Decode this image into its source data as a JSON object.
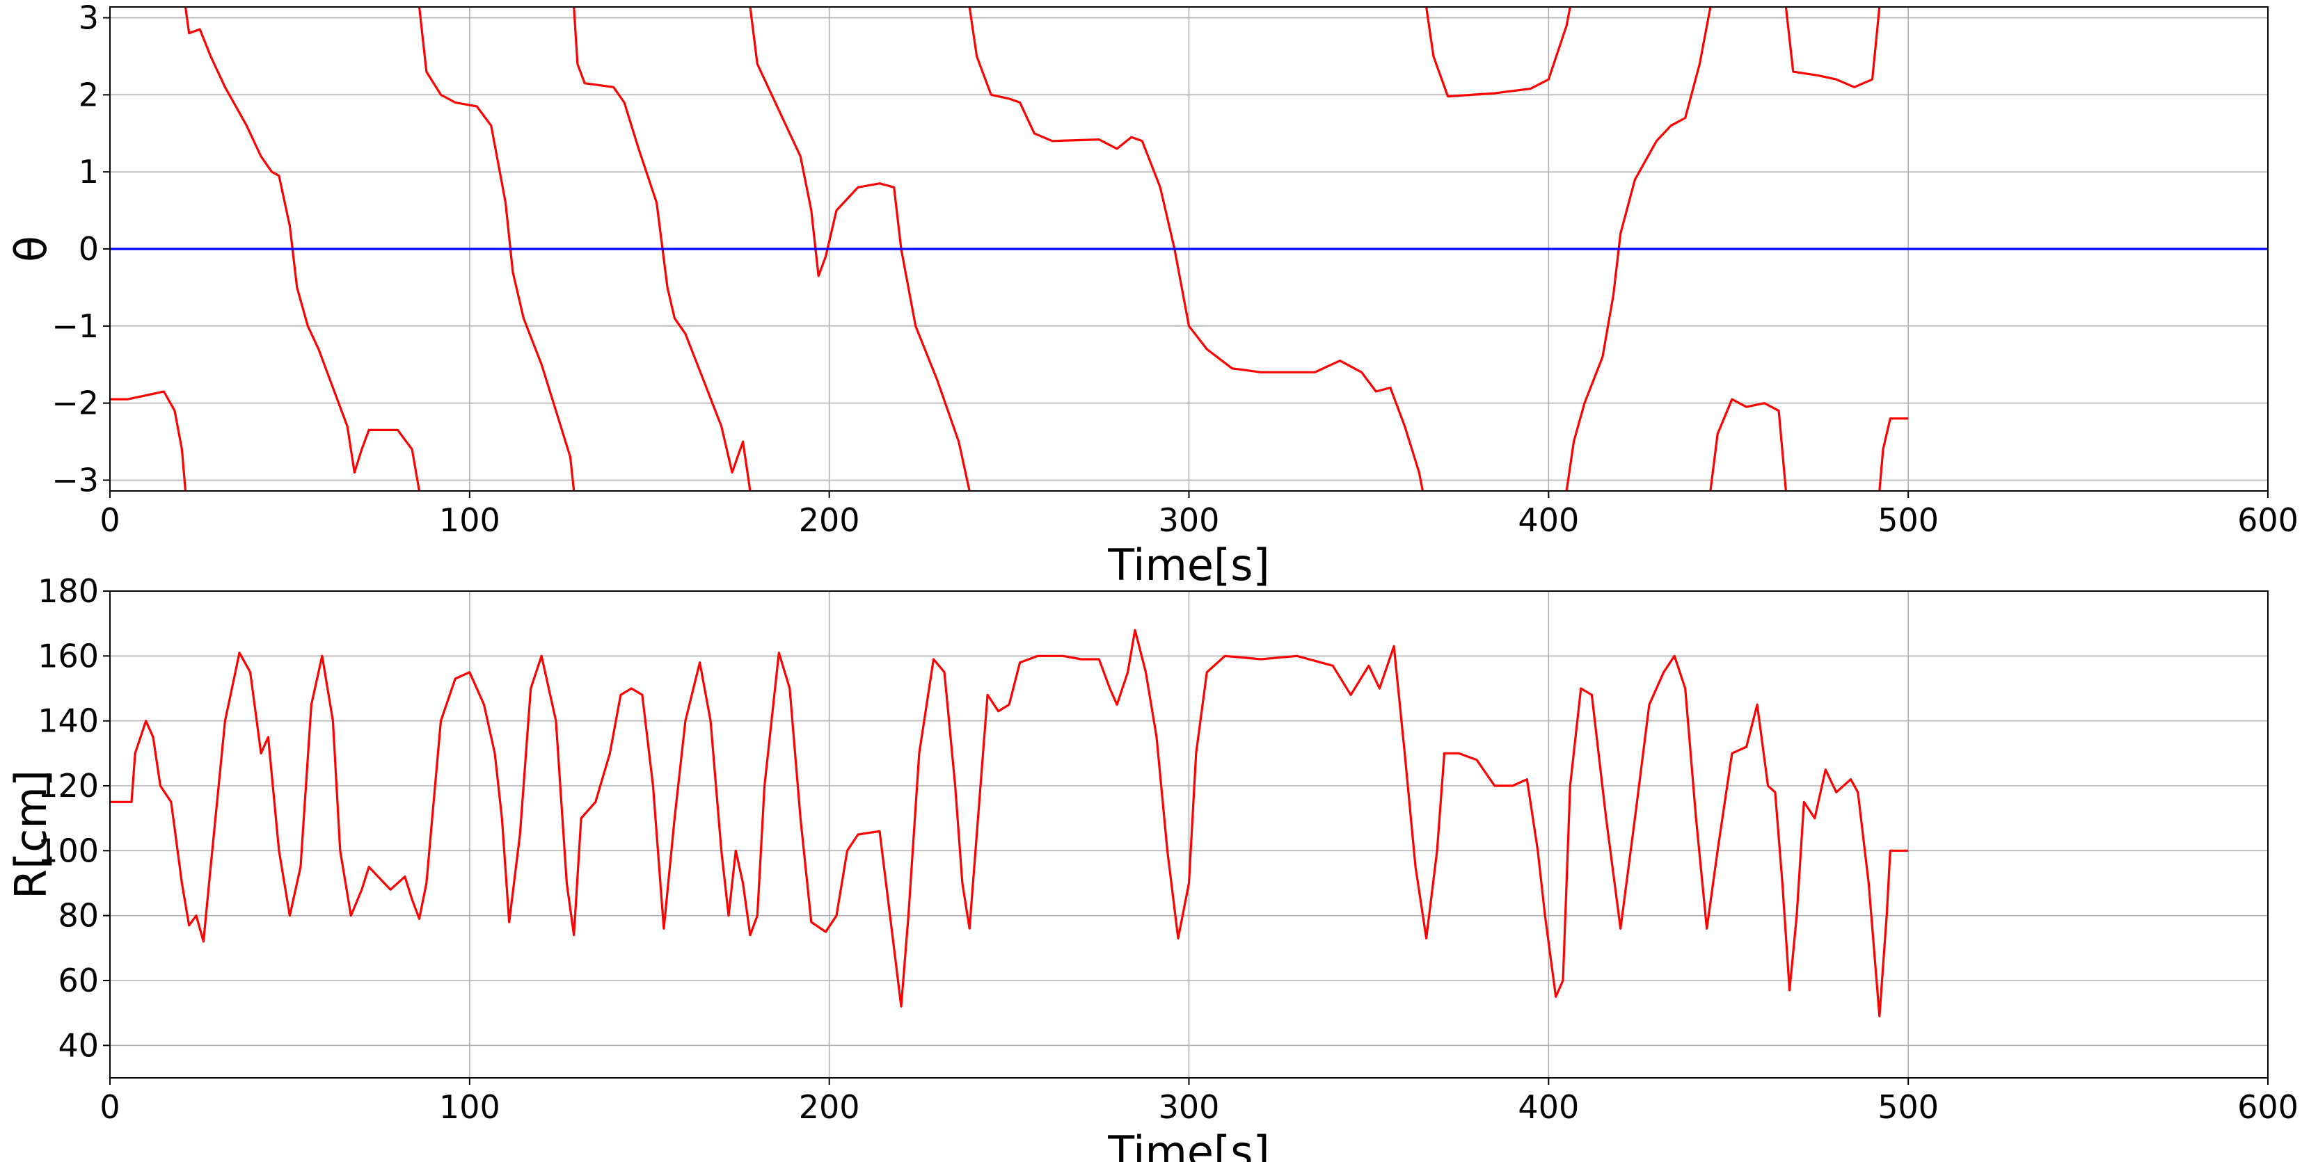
{
  "chart_data": [
    {
      "type": "line",
      "xlabel": "Time[s]",
      "ylabel": "θ",
      "xlim": [
        0,
        600
      ],
      "ylim": [
        -3.14,
        3.14
      ],
      "xticks": [
        0,
        100,
        200,
        300,
        400,
        500,
        600
      ],
      "yticks": [
        {
          "value": -3,
          "label": "−3"
        },
        {
          "value": -2,
          "label": "−2"
        },
        {
          "value": -1,
          "label": "−1"
        },
        0,
        1,
        2,
        3
      ],
      "grid": true,
      "series": [
        {
          "color": "#ff0000",
          "x": [
            0,
            5,
            10,
            15,
            18,
            20,
            21,
            21,
            21,
            22,
            25,
            28,
            32,
            38,
            42,
            45,
            47,
            50,
            52,
            55,
            58,
            62,
            66,
            68,
            70,
            72,
            80,
            84,
            86,
            86,
            86,
            88,
            92,
            96,
            102,
            106,
            110,
            112,
            115,
            120,
            124,
            128,
            129,
            129,
            129,
            130,
            132,
            140,
            143,
            147,
            152,
            155,
            157,
            160,
            165,
            170,
            173,
            176,
            178,
            178,
            178,
            180,
            185,
            192,
            195,
            197,
            199,
            202,
            208,
            214,
            218,
            220,
            224,
            230,
            236,
            239,
            239,
            239,
            241,
            245,
            250,
            253,
            257,
            262,
            275,
            280,
            284,
            287,
            292,
            296,
            300,
            305,
            312,
            320,
            335,
            342,
            348,
            352,
            356,
            360,
            364,
            365,
            365,
            366,
            368,
            372,
            385,
            395,
            400,
            405,
            406,
            406,
            405,
            407,
            410,
            415,
            418,
            420,
            424,
            430,
            434,
            438,
            442,
            445,
            445,
            445,
            447,
            451,
            455,
            460,
            464,
            466,
            466,
            466,
            468,
            475,
            480,
            485,
            490,
            492,
            492,
            492,
            493,
            495,
            500
          ],
          "values": [
            -1.95,
            -1.95,
            -1.9,
            -1.85,
            -2.1,
            -2.6,
            -3.14,
            null,
            3.14,
            2.8,
            2.85,
            2.5,
            2.1,
            1.6,
            1.2,
            1.0,
            0.95,
            0.3,
            -0.5,
            -1.0,
            -1.3,
            -1.8,
            -2.3,
            -2.9,
            -2.6,
            -2.35,
            -2.35,
            -2.6,
            -3.14,
            null,
            3.14,
            2.3,
            2.0,
            1.9,
            1.85,
            1.6,
            0.6,
            -0.3,
            -0.9,
            -1.5,
            -2.1,
            -2.7,
            -3.14,
            null,
            3.14,
            2.4,
            2.15,
            2.1,
            1.9,
            1.3,
            0.6,
            -0.5,
            -0.9,
            -1.1,
            -1.7,
            -2.3,
            -2.9,
            -2.5,
            -3.14,
            null,
            3.14,
            2.4,
            1.9,
            1.2,
            0.5,
            -0.35,
            -0.1,
            0.5,
            0.8,
            0.85,
            0.8,
            0.0,
            -1.0,
            -1.7,
            -2.5,
            -3.14,
            null,
            3.14,
            2.5,
            2.0,
            1.95,
            1.9,
            1.5,
            1.4,
            1.42,
            1.3,
            1.45,
            1.4,
            0.8,
            0.0,
            -1.0,
            -1.3,
            -1.55,
            -1.6,
            -1.6,
            -1.45,
            -1.6,
            -1.85,
            -1.8,
            -2.3,
            -2.9,
            -3.14,
            null,
            3.14,
            2.5,
            1.98,
            2.02,
            2.08,
            2.2,
            2.9,
            3.14,
            null,
            -3.14,
            -2.5,
            -2.0,
            -1.4,
            -0.6,
            0.2,
            0.9,
            1.4,
            1.6,
            1.7,
            2.4,
            3.14,
            null,
            -3.14,
            -2.4,
            -1.95,
            -2.05,
            -2.0,
            -2.1,
            -3.14,
            null,
            3.14,
            2.3,
            2.25,
            2.2,
            2.1,
            2.2,
            3.14,
            null,
            -3.14,
            -2.6,
            -2.2,
            -2.2
          ]
        },
        {
          "color": "#0000ff",
          "x": [
            0,
            600
          ],
          "values": [
            0,
            0
          ]
        }
      ]
    },
    {
      "type": "line",
      "xlabel": "Time[s]",
      "ylabel": "R[cm]",
      "xlim": [
        0,
        600
      ],
      "ylim": [
        30,
        180
      ],
      "xticks": [
        0,
        100,
        200,
        300,
        400,
        500,
        600
      ],
      "yticks": [
        40,
        60,
        80,
        100,
        120,
        140,
        160,
        180
      ],
      "grid": true,
      "series": [
        {
          "color": "#ff0000",
          "x": [
            0,
            6,
            7,
            10,
            12,
            14,
            17,
            20,
            22,
            24,
            26,
            28,
            32,
            36,
            39,
            42,
            44,
            47,
            50,
            53,
            56,
            59,
            62,
            64,
            67,
            70,
            72,
            78,
            82,
            84,
            86,
            88,
            92,
            96,
            100,
            104,
            107,
            109,
            111,
            114,
            117,
            120,
            124,
            127,
            129,
            131,
            135,
            139,
            142,
            145,
            148,
            151,
            154,
            157,
            160,
            164,
            167,
            170,
            172,
            174,
            176,
            178,
            180,
            182,
            186,
            189,
            192,
            195,
            199,
            202,
            205,
            208,
            214,
            218,
            220,
            222,
            225,
            229,
            232,
            235,
            237,
            239,
            241,
            244,
            247,
            250,
            253,
            258,
            265,
            270,
            275,
            278,
            280,
            283,
            285,
            288,
            291,
            294,
            297,
            300,
            302,
            305,
            310,
            320,
            330,
            340,
            345,
            350,
            353,
            357,
            360,
            363,
            366,
            369,
            371,
            375,
            380,
            385,
            390,
            394,
            397,
            399,
            402,
            404,
            406,
            409,
            412,
            416,
            420,
            424,
            428,
            432,
            435,
            438,
            441,
            444,
            447,
            451,
            455,
            458,
            461,
            463,
            465,
            467,
            469,
            471,
            474,
            477,
            480,
            484,
            486,
            489,
            492,
            494,
            495,
            500
          ],
          "values": [
            115,
            115,
            130,
            140,
            135,
            120,
            115,
            90,
            77,
            80,
            72,
            95,
            140,
            161,
            155,
            130,
            135,
            100,
            80,
            95,
            145,
            160,
            140,
            100,
            80,
            88,
            95,
            88,
            92,
            85,
            79,
            90,
            140,
            153,
            155,
            145,
            130,
            110,
            78,
            105,
            150,
            160,
            140,
            90,
            74,
            110,
            115,
            130,
            148,
            150,
            148,
            120,
            76,
            110,
            140,
            158,
            140,
            100,
            80,
            100,
            90,
            74,
            80,
            120,
            161,
            150,
            110,
            78,
            75,
            80,
            100,
            105,
            106,
            70,
            52,
            80,
            130,
            159,
            155,
            120,
            90,
            76,
            105,
            148,
            143,
            145,
            158,
            160,
            160,
            159,
            159,
            150,
            145,
            155,
            168,
            155,
            135,
            100,
            73,
            90,
            130,
            155,
            160,
            159,
            160,
            157,
            148,
            157,
            150,
            163,
            130,
            95,
            73,
            100,
            130,
            130,
            128,
            120,
            120,
            122,
            100,
            80,
            55,
            60,
            120,
            150,
            148,
            110,
            76,
            110,
            145,
            155,
            160,
            150,
            110,
            76,
            100,
            130,
            132,
            145,
            120,
            118,
            90,
            57,
            80,
            115,
            110,
            125,
            118,
            122,
            118,
            90,
            49,
            80,
            100,
            100
          ]
        }
      ]
    }
  ]
}
